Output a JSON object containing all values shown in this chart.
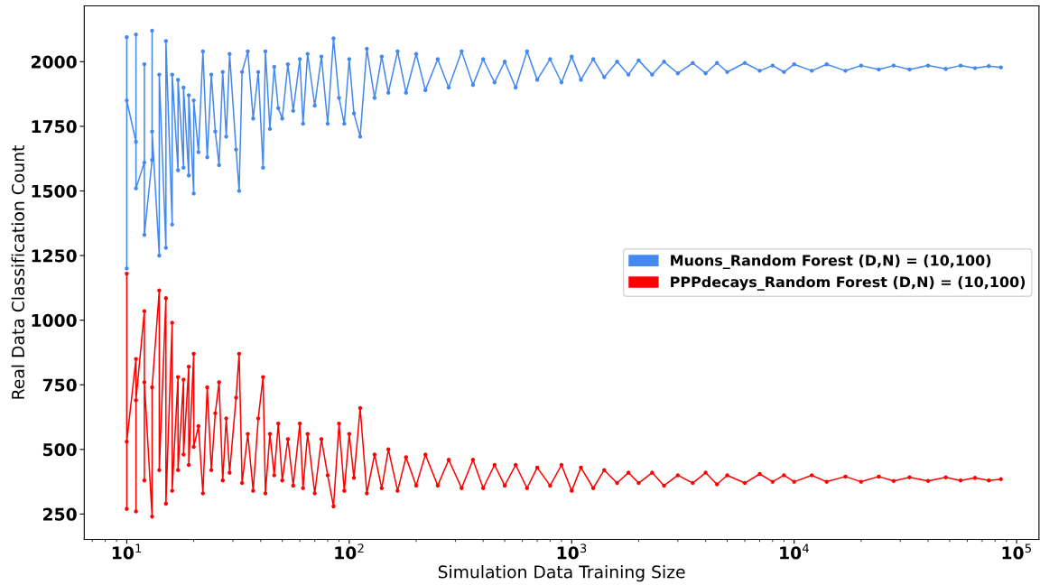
{
  "chart_data": {
    "type": "line",
    "xlabel": "Simulation Data Training Size",
    "ylabel": "Real Data Classification Count",
    "log": "x",
    "xlim": [
      6.44,
      126000
    ],
    "xticks": [
      {
        "value": 10,
        "label": "10$^{1}$"
      },
      {
        "value": 100,
        "label": "10$^{2}$"
      },
      {
        "value": 1000,
        "label": "10$^{3}$"
      },
      {
        "value": 10000,
        "label": "10$^{4}$"
      },
      {
        "value": 100000,
        "label": "10$^{5}$"
      }
    ],
    "ylim": [
      152,
      2216
    ],
    "yticks": [
      250,
      500,
      750,
      1000,
      1250,
      1500,
      1750,
      2000
    ],
    "grid": false,
    "legend": "right",
    "marker": "circle",
    "line_style": "solid",
    "series": [
      {
        "name": "Muons_Random Forest (D,N) = (10,100)",
        "color": "#4488f0",
        "x": [
          10,
          10,
          10,
          11,
          11,
          11,
          12,
          12,
          12,
          13,
          13,
          13,
          14,
          14,
          15,
          15,
          16,
          16,
          17,
          17,
          18,
          18,
          19,
          19,
          20,
          20,
          21,
          22,
          23,
          24,
          25,
          26,
          27,
          28,
          29,
          31,
          32,
          33,
          35,
          37,
          39,
          41,
          42,
          44,
          46,
          48,
          50,
          53,
          56,
          60,
          62,
          65,
          70,
          75,
          80,
          85,
          90,
          95,
          100,
          105,
          112,
          120,
          130,
          140,
          150,
          165,
          180,
          200,
          220,
          250,
          280,
          320,
          360,
          400,
          450,
          500,
          560,
          630,
          700,
          800,
          900,
          1000,
          1100,
          1250,
          1400,
          1600,
          1800,
          2000,
          2300,
          2600,
          3000,
          3500,
          4000,
          4500,
          5000,
          6000,
          7000,
          8000,
          9000,
          10000,
          12000,
          14000,
          17000,
          20000,
          24000,
          28000,
          33000,
          40000,
          48000,
          56000,
          65000,
          75000,
          85000
        ],
        "values": [
          2095,
          1200,
          1850,
          1690,
          2105,
          1510,
          1610,
          1990,
          1330,
          1620,
          2120,
          1730,
          1250,
          1950,
          1280,
          2080,
          1370,
          1950,
          1580,
          1930,
          1590,
          1900,
          1560,
          1870,
          1490,
          1850,
          1650,
          2040,
          1630,
          1950,
          1730,
          1600,
          1960,
          1710,
          2030,
          1660,
          1500,
          1960,
          2040,
          1780,
          1960,
          1590,
          2040,
          1740,
          1980,
          1820,
          1780,
          1990,
          1810,
          2010,
          1760,
          2030,
          1830,
          2020,
          1760,
          2090,
          1860,
          1760,
          2010,
          1800,
          1710,
          2050,
          1860,
          2020,
          1880,
          2040,
          1880,
          2030,
          1890,
          2010,
          1900,
          2040,
          1910,
          2010,
          1920,
          2000,
          1900,
          2040,
          1930,
          2010,
          1920,
          2020,
          1930,
          2010,
          1940,
          2000,
          1950,
          2005,
          1950,
          2000,
          1955,
          1995,
          1955,
          1995,
          1960,
          1995,
          1965,
          1985,
          1960,
          1990,
          1965,
          1990,
          1965,
          1985,
          1970,
          1985,
          1970,
          1985,
          1972,
          1985,
          1975,
          1983,
          1978
        ]
      },
      {
        "name": "PPPdecays_Random Forest (D,N) = (10,100)",
        "color": "#ff0000",
        "x": [
          10,
          10,
          10,
          11,
          11,
          11,
          12,
          12,
          12,
          13,
          13,
          14,
          14,
          15,
          15,
          16,
          16,
          17,
          17,
          18,
          18,
          19,
          19,
          20,
          20,
          21,
          22,
          23,
          24,
          25,
          26,
          27,
          28,
          29,
          31,
          32,
          33,
          35,
          37,
          39,
          41,
          42,
          44,
          46,
          48,
          50,
          53,
          56,
          60,
          62,
          65,
          70,
          75,
          80,
          85,
          90,
          95,
          100,
          105,
          112,
          120,
          130,
          140,
          150,
          165,
          180,
          200,
          220,
          250,
          280,
          320,
          360,
          400,
          450,
          500,
          560,
          630,
          700,
          800,
          900,
          1000,
          1100,
          1250,
          1400,
          1600,
          1800,
          2000,
          2300,
          2600,
          3000,
          3500,
          4000,
          4500,
          5000,
          6000,
          7000,
          8000,
          9000,
          10000,
          12000,
          14000,
          17000,
          20000,
          24000,
          28000,
          33000,
          40000,
          48000,
          56000,
          65000,
          75000,
          85000
        ],
        "values": [
          1180,
          270,
          530,
          850,
          260,
          690,
          1035,
          380,
          760,
          240,
          740,
          1115,
          420,
          1085,
          290,
          990,
          340,
          780,
          420,
          770,
          480,
          820,
          440,
          870,
          510,
          590,
          330,
          740,
          420,
          640,
          760,
          380,
          620,
          410,
          700,
          870,
          370,
          560,
          340,
          620,
          780,
          330,
          560,
          400,
          600,
          380,
          540,
          360,
          600,
          350,
          560,
          330,
          540,
          400,
          280,
          600,
          340,
          560,
          390,
          660,
          330,
          480,
          350,
          500,
          340,
          470,
          360,
          480,
          360,
          460,
          350,
          460,
          350,
          440,
          360,
          440,
          350,
          430,
          360,
          440,
          340,
          430,
          350,
          420,
          370,
          410,
          370,
          410,
          360,
          400,
          370,
          410,
          365,
          400,
          370,
          405,
          375,
          400,
          375,
          400,
          375,
          395,
          375,
          395,
          378,
          392,
          378,
          392,
          380,
          390,
          380,
          385
        ]
      }
    ]
  }
}
